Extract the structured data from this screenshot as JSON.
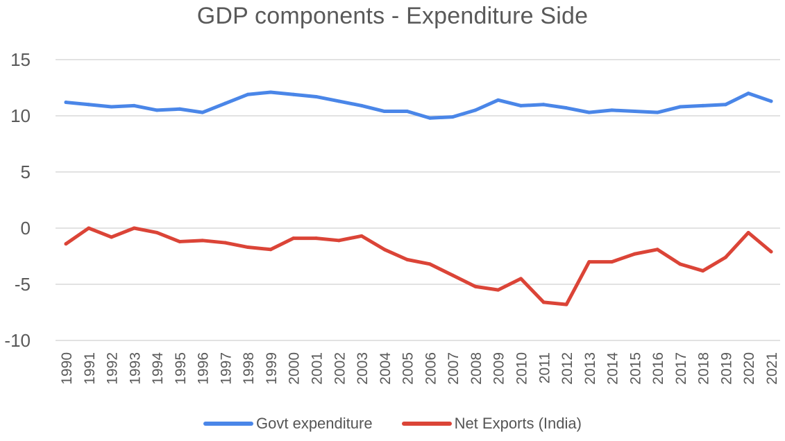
{
  "chart_data": {
    "type": "line",
    "title": "GDP components - Expenditure Side",
    "xlabel": "",
    "ylabel": "",
    "ylim": [
      -10,
      15
    ],
    "yticks": [
      15,
      10,
      5,
      0,
      -5,
      -10
    ],
    "ytick_labels": [
      "15",
      "10",
      "5",
      "0",
      "-5",
      "-10"
    ],
    "categories": [
      "1990",
      "1991",
      "1992",
      "1993",
      "1994",
      "1995",
      "1996",
      "1997",
      "1998",
      "1999",
      "2000",
      "2001",
      "2002",
      "2003",
      "2004",
      "2005",
      "2006",
      "2007",
      "2008",
      "2009",
      "2010",
      "2011",
      "2012",
      "2013",
      "2014",
      "2015",
      "2016",
      "2017",
      "2018",
      "2019",
      "2020",
      "2021"
    ],
    "grid": true,
    "legend_position": "bottom",
    "series": [
      {
        "name": "Govt expenditure",
        "color": "#4a86e8",
        "values": [
          11.2,
          11.0,
          10.8,
          10.9,
          10.5,
          10.6,
          10.3,
          11.1,
          11.9,
          12.1,
          11.9,
          11.7,
          11.3,
          10.9,
          10.4,
          10.4,
          9.8,
          9.9,
          10.5,
          11.4,
          10.9,
          11.0,
          10.7,
          10.3,
          10.5,
          10.4,
          10.3,
          10.8,
          10.9,
          11.0,
          12.0,
          11.3
        ]
      },
      {
        "name": "Net Exports (India)",
        "color": "#db4437",
        "values": [
          -1.4,
          0.0,
          -0.8,
          0.0,
          -0.4,
          -1.2,
          -1.1,
          -1.3,
          -1.7,
          -1.9,
          -0.9,
          -0.9,
          -1.1,
          -0.7,
          -1.9,
          -2.8,
          -3.2,
          -4.2,
          -5.2,
          -5.5,
          -4.5,
          -6.6,
          -6.8,
          -3.0,
          -3.0,
          -2.3,
          -1.9,
          -3.2,
          -3.8,
          -2.6,
          -0.4,
          -2.1
        ]
      }
    ]
  }
}
